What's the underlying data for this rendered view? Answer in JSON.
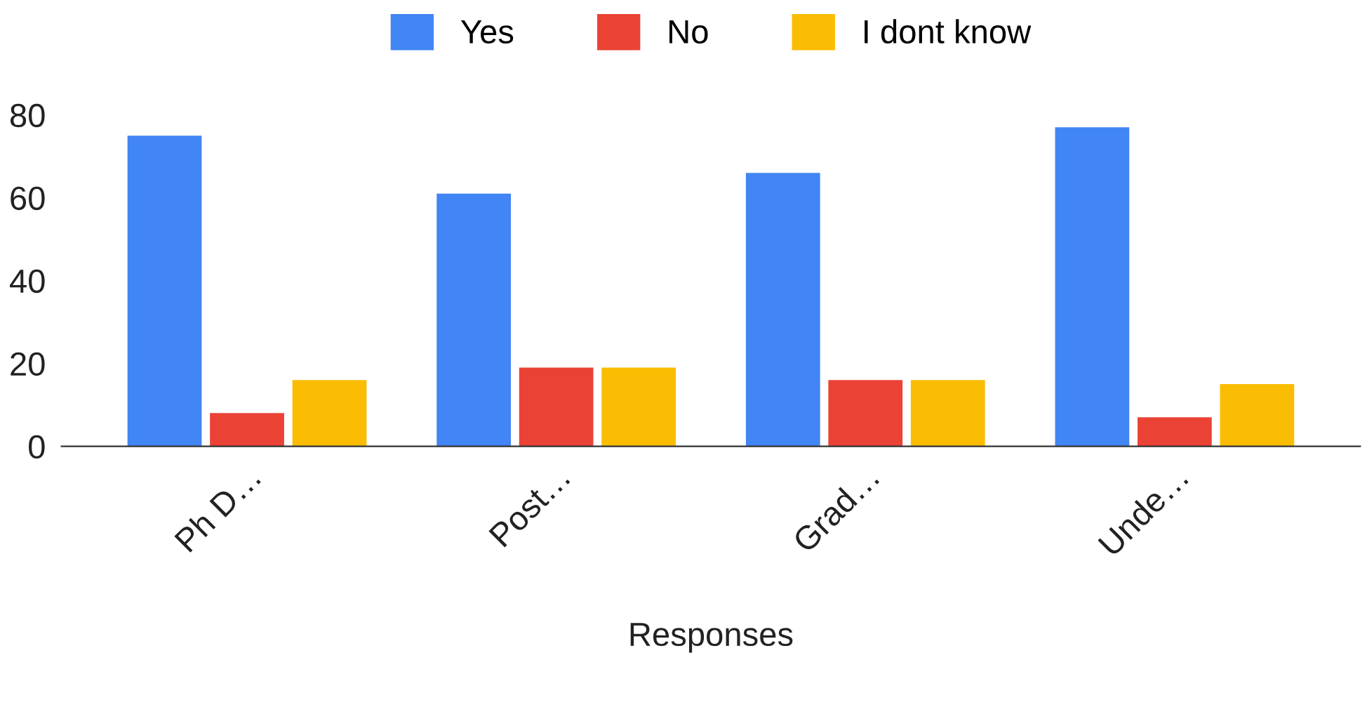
{
  "chart_data": {
    "type": "bar",
    "xlabel": "Responses",
    "categories": [
      "Ph D…",
      "Post…",
      "Grad…",
      "Unde…"
    ],
    "series": [
      {
        "name": "Yes",
        "color": "#4285f4",
        "values": [
          75,
          61,
          66,
          77
        ]
      },
      {
        "name": "No",
        "color": "#ea4335",
        "values": [
          8,
          19,
          16,
          7
        ]
      },
      {
        "name": "I dont know",
        "color": "#fbbc04",
        "values": [
          16,
          19,
          16,
          15
        ]
      }
    ],
    "ylim": [
      0,
      80
    ],
    "yticks": [
      0,
      20,
      40,
      60,
      80
    ],
    "grid": false,
    "legend": "top"
  }
}
